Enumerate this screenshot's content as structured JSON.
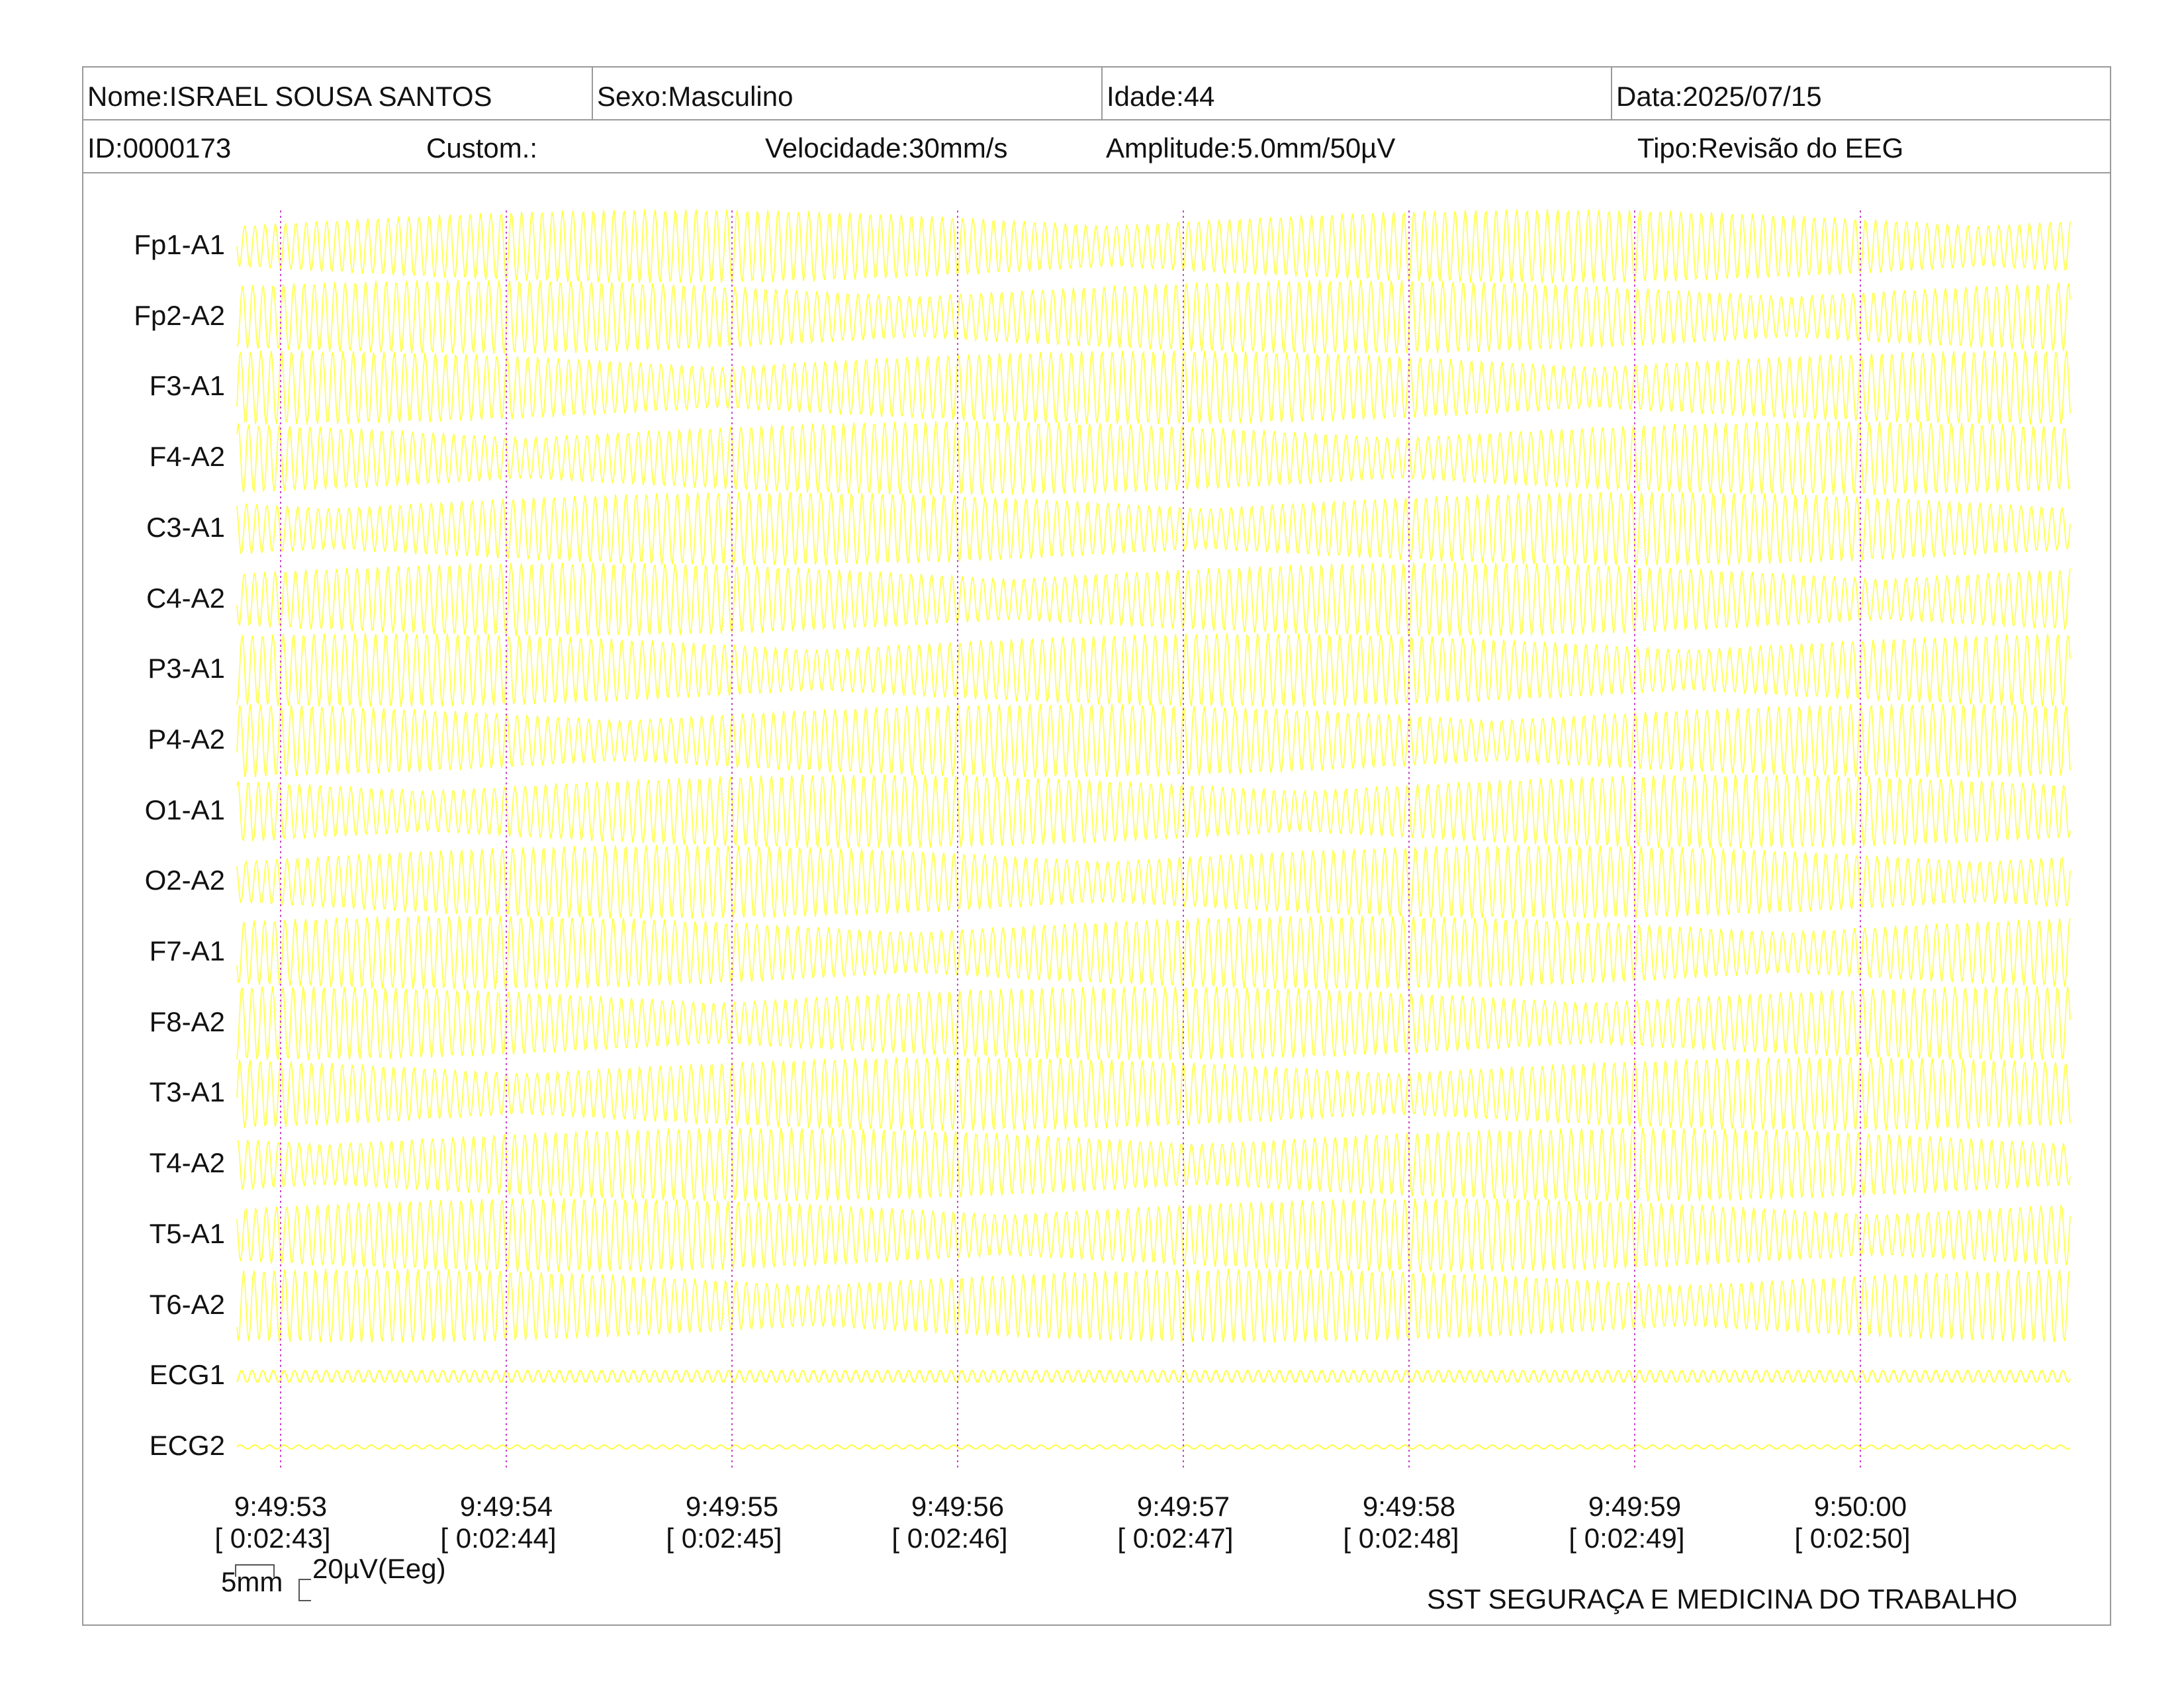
{
  "header": {
    "name": "Nome:ISRAEL SOUSA SANTOS",
    "sex": "Sexo:Masculino",
    "age": "Idade:44",
    "date": "Data:2025/07/15",
    "id": "ID:0000173",
    "custom": "Custom.:",
    "speed": "Velocidade:30mm/s",
    "amplitude": "Amplitude:5.0mm/50µV",
    "type": "Tipo:Revisão do EEG"
  },
  "channels": [
    "Fp1-A1",
    "Fp2-A2",
    "F3-A1",
    "F4-A2",
    "C3-A1",
    "C4-A2",
    "P3-A1",
    "P4-A2",
    "O1-A1",
    "O2-A2",
    "F7-A1",
    "F8-A2",
    "T3-A1",
    "T4-A2",
    "T5-A1",
    "T6-A2",
    "ECG1",
    "ECG2"
  ],
  "time_markers": [
    {
      "clock": "9:49:53",
      "elapsed": "[ 0:02:43]"
    },
    {
      "clock": "9:49:54",
      "elapsed": "[ 0:02:44]"
    },
    {
      "clock": "9:49:55",
      "elapsed": "[ 0:02:45]"
    },
    {
      "clock": "9:49:56",
      "elapsed": "[ 0:02:46]"
    },
    {
      "clock": "9:49:57",
      "elapsed": "[ 0:02:47]"
    },
    {
      "clock": "9:49:58",
      "elapsed": "[ 0:02:48]"
    },
    {
      "clock": "9:49:59",
      "elapsed": "[ 0:02:49]"
    },
    {
      "clock": "9:50:00",
      "elapsed": "[ 0:02:50]"
    }
  ],
  "scale": {
    "time": "5mm",
    "amplitude": "20µV(Eeg)"
  },
  "footer": "SST SEGURAÇA E MEDICINA DO TRABALHO",
  "colors": {
    "trace": "#ffff40",
    "marker": "#cc44cc",
    "border": "#9a9a9a"
  }
}
